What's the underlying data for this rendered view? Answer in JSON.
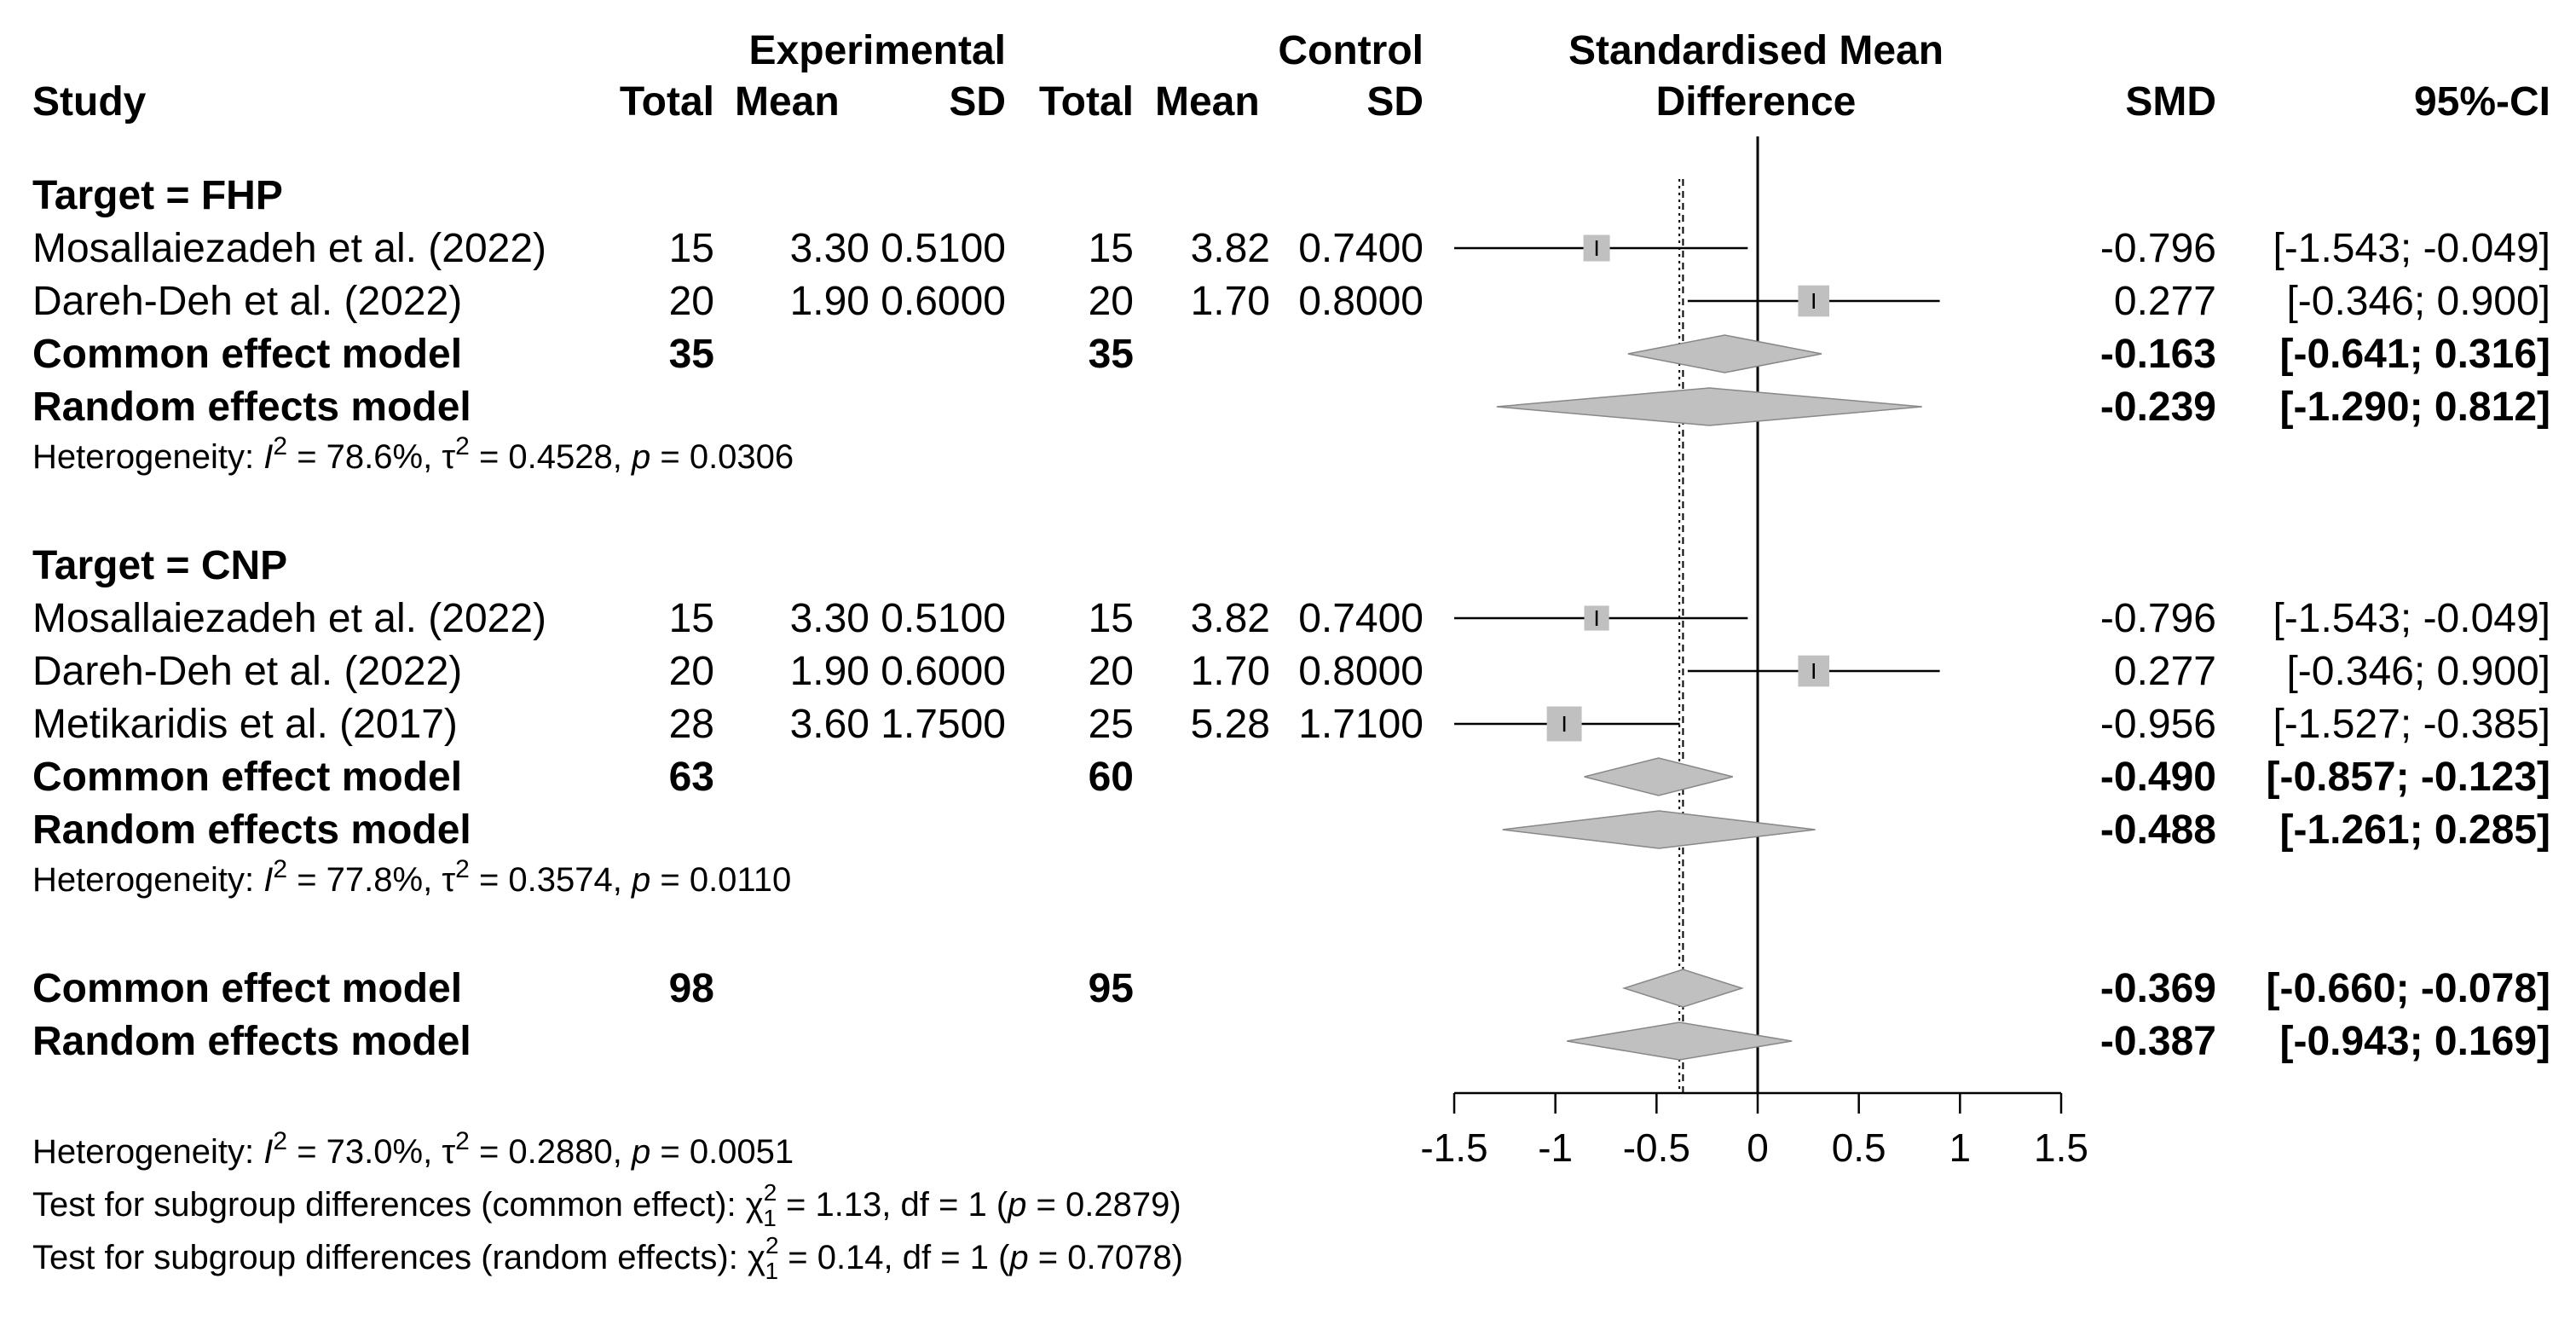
{
  "chart_data": {
    "type": "forest",
    "title": "",
    "headers": {
      "study": "Study",
      "experimental": "Experimental",
      "control": "Control",
      "total": "Total",
      "mean": "Mean",
      "sd": "SD",
      "smd_title_line1": "Standardised Mean",
      "smd_title_line2": "Difference",
      "smd": "SMD",
      "ci": "95%-CI"
    },
    "xaxis": {
      "range": [
        -1.5,
        1.5
      ],
      "ticks": [
        -1.5,
        -1,
        -0.5,
        0,
        0.5,
        1,
        1.5
      ],
      "tick_labels": [
        "-1.5",
        "-1",
        "-0.5",
        "0",
        "0.5",
        "1",
        "1.5"
      ]
    },
    "reference_lines": {
      "null": 0,
      "common_effect": -0.369,
      "random_effects": -0.387
    },
    "rows": [
      {
        "kind": "group",
        "label": "Target = FHP"
      },
      {
        "kind": "study",
        "label": "Mosallaiezadeh et al. (2022)",
        "e_total": "15",
        "e_mean": "3.30",
        "e_sd": "0.5100",
        "c_total": "15",
        "c_mean": "3.82",
        "c_sd": "0.7400",
        "smd": -0.796,
        "lo": -1.543,
        "hi": -0.049,
        "smd_text": "-0.796",
        "ci_text": "[-1.543; -0.049]",
        "box": 0.5
      },
      {
        "kind": "study",
        "label": "Dareh-Deh et al. (2022)",
        "e_total": "20",
        "e_mean": "1.90",
        "e_sd": "0.6000",
        "c_total": "20",
        "c_mean": "1.70",
        "c_sd": "0.8000",
        "smd": 0.277,
        "lo": -0.346,
        "hi": 0.9,
        "smd_text": "0.277",
        "ci_text": "[-0.346;  0.900]",
        "box": 0.59
      },
      {
        "kind": "common",
        "label": "Common effect model",
        "e_total": "35",
        "c_total": "35",
        "smd": -0.163,
        "lo": -0.641,
        "hi": 0.316,
        "smd_text": "-0.163",
        "ci_text": "[-0.641;  0.316]"
      },
      {
        "kind": "random",
        "label": "Random effects model",
        "smd": -0.239,
        "lo": -1.29,
        "hi": 0.812,
        "smd_text": "-0.239",
        "ci_text": "[-1.290;  0.812]"
      },
      {
        "kind": "het",
        "prefix": "Heterogeneity: ",
        "i2_sym": "I",
        "i2_sup": "2",
        "i2_val": " = 78.6%, ",
        "tau_sym": "τ",
        "tau_sup": "2",
        "tau_val": " = 0.4528, ",
        "p_sym": "p",
        "p_val": " = 0.0306"
      },
      {
        "kind": "blank"
      },
      {
        "kind": "group",
        "label": "Target = CNP"
      },
      {
        "kind": "study",
        "label": "Mosallaiezadeh et al. (2022)",
        "e_total": "15",
        "e_mean": "3.30",
        "e_sd": "0.5100",
        "c_total": "15",
        "c_mean": "3.82",
        "c_sd": "0.7400",
        "smd": -0.796,
        "lo": -1.543,
        "hi": -0.049,
        "smd_text": "-0.796",
        "ci_text": "[-1.543; -0.049]",
        "box": 0.47
      },
      {
        "kind": "study",
        "label": "Dareh-Deh et al. (2022)",
        "e_total": "20",
        "e_mean": "1.90",
        "e_sd": "0.6000",
        "c_total": "20",
        "c_mean": "1.70",
        "c_sd": "0.8000",
        "smd": 0.277,
        "lo": -0.346,
        "hi": 0.9,
        "smd_text": "0.277",
        "ci_text": "[-0.346;  0.900]",
        "box": 0.59
      },
      {
        "kind": "study",
        "label": "Metikaridis et al. (2017)",
        "e_total": "28",
        "e_mean": "3.60",
        "e_sd": "1.7500",
        "c_total": "25",
        "c_mean": "5.28",
        "c_sd": "1.7100",
        "smd": -0.956,
        "lo": -1.527,
        "hi": -0.385,
        "smd_text": "-0.956",
        "ci_text": "[-1.527; -0.385]",
        "box": 0.66
      },
      {
        "kind": "common",
        "label": "Common effect model",
        "e_total": "63",
        "c_total": "60",
        "smd": -0.49,
        "lo": -0.857,
        "hi": -0.123,
        "smd_text": "-0.490",
        "ci_text": "[-0.857; -0.123]"
      },
      {
        "kind": "random",
        "label": "Random effects model",
        "smd": -0.488,
        "lo": -1.261,
        "hi": 0.285,
        "smd_text": "-0.488",
        "ci_text": "[-1.261;  0.285]"
      },
      {
        "kind": "het",
        "prefix": "Heterogeneity: ",
        "i2_sym": "I",
        "i2_sup": "2",
        "i2_val": " = 77.8%, ",
        "tau_sym": "τ",
        "tau_sup": "2",
        "tau_val": " = 0.3574, ",
        "p_sym": "p",
        "p_val": " = 0.0110"
      },
      {
        "kind": "blank"
      },
      {
        "kind": "common",
        "label": "Common effect model",
        "e_total": "98",
        "c_total": "95",
        "smd": -0.369,
        "lo": -0.66,
        "hi": -0.078,
        "smd_text": "-0.369",
        "ci_text": "[-0.660; -0.078]"
      },
      {
        "kind": "random",
        "label": "Random effects model",
        "smd": -0.387,
        "lo": -0.943,
        "hi": 0.169,
        "smd_text": "-0.387",
        "ci_text": "[-0.943;  0.169]"
      }
    ],
    "footer": {
      "overall_het": {
        "prefix": "Heterogeneity: ",
        "i2_sym": "I",
        "i2_sup": "2",
        "i2_val": " = 73.0%, ",
        "tau_sym": "τ",
        "tau_sup": "2",
        "tau_val": " = 0.2880, ",
        "p_sym": "p",
        "p_val": " = 0.0051"
      },
      "subgroup_tests": [
        {
          "prefix": "Test for subgroup differences (common effect): ",
          "chi": "χ",
          "chi_sup": "2",
          "chi_sub": "1",
          "val": " = 1.13, df = 1 (",
          "p_sym": "p",
          "p_val": " = 0.2879)"
        },
        {
          "prefix": "Test for subgroup differences (random effects): ",
          "chi": "χ",
          "chi_sup": "2",
          "chi_sub": "1",
          "val": " = 0.14, df = 1 (",
          "p_sym": "p",
          "p_val": " = 0.7078)"
        }
      ]
    },
    "colors": {
      "box": "#c0c0c0",
      "diamond": "#c0c0c0",
      "line": "#000000"
    }
  }
}
